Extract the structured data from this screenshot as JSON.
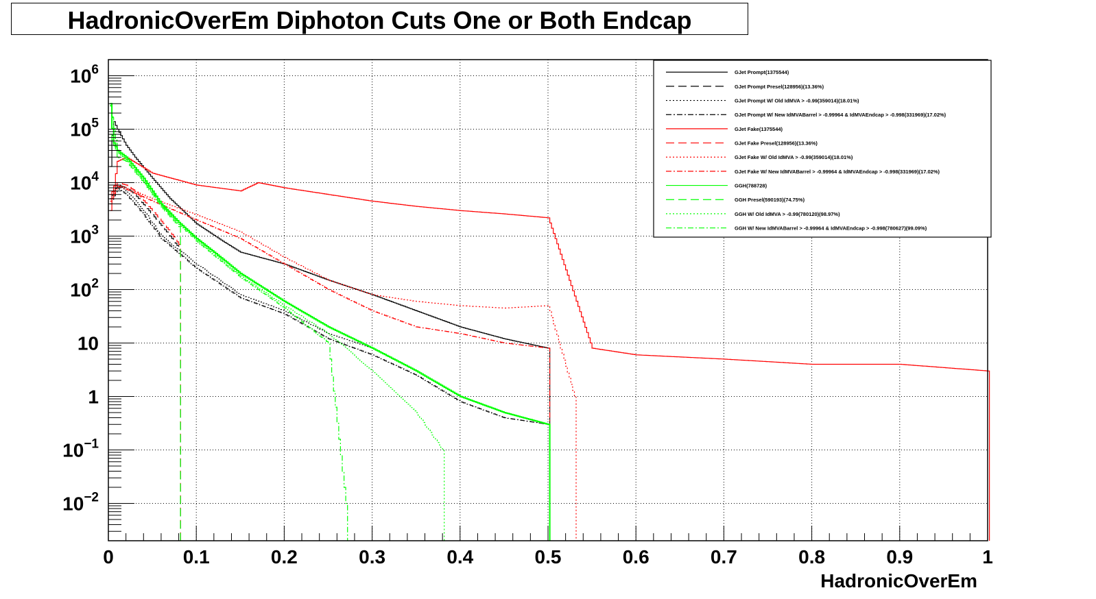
{
  "title": "HadronicOverEm Diphoton Cuts One or Both Endcap",
  "chart_data": {
    "type": "line",
    "style": "step histogram",
    "xlabel": "HadronicOverEm",
    "ylabel": "",
    "xlim": [
      0,
      1
    ],
    "ylim": [
      0.002,
      2000000
    ],
    "yscale": "log",
    "grid": true,
    "legend_placement": "top-right",
    "x_tick_labels": [
      "0",
      "0.1",
      "0.2",
      "0.3",
      "0.4",
      "0.5",
      "0.6",
      "0.7",
      "0.8",
      "0.9",
      "1"
    ],
    "y_tick_labels": [
      {
        "base": "10",
        "exp": "−2"
      },
      {
        "base": "10",
        "exp": "−1"
      },
      {
        "base": "1",
        "exp": ""
      },
      {
        "base": "10",
        "exp": ""
      },
      {
        "base": "10",
        "exp": "2"
      },
      {
        "base": "10",
        "exp": "3"
      },
      {
        "base": "10",
        "exp": "4"
      },
      {
        "base": "10",
        "exp": "5"
      },
      {
        "base": "10",
        "exp": "6"
      }
    ],
    "series": [
      {
        "name": "GJet Prompt(1375544)",
        "color": "#000000",
        "dash": "solid",
        "x": [
          0.002,
          0.005,
          0.01,
          0.02,
          0.03,
          0.05,
          0.07,
          0.1,
          0.13,
          0.15,
          0.2,
          0.25,
          0.3,
          0.35,
          0.4,
          0.45,
          0.5
        ],
        "y": [
          20000,
          150000,
          100000,
          50000,
          30000,
          12000,
          5000,
          1700,
          800,
          500,
          300,
          150,
          80,
          40,
          20,
          12,
          8
        ]
      },
      {
        "name": "GJet Prompt Presel(128956)(13.36%)",
        "color": "#000000",
        "dash": "long",
        "x": [
          0.002,
          0.01,
          0.02,
          0.03,
          0.05,
          0.07,
          0.08
        ],
        "y": [
          5000,
          9000,
          8000,
          6000,
          2500,
          1000,
          600
        ]
      },
      {
        "name": "GJet Prompt W/ Old IdMVA > -0.99(359014)(18.01%)",
        "color": "#000000",
        "dash": "dot",
        "x": [
          0.002,
          0.01,
          0.02,
          0.04,
          0.06,
          0.1,
          0.15,
          0.2,
          0.25,
          0.3,
          0.35,
          0.4,
          0.45,
          0.5
        ],
        "y": [
          5000,
          9000,
          7000,
          3000,
          1000,
          300,
          80,
          40,
          15,
          8,
          3,
          1,
          0.5,
          0.3
        ]
      },
      {
        "name": "GJet Prompt W/ New IdMVABarrel > -0.99964 & IdMVAEndcap > -0.998(331969)(17.02%)",
        "color": "#000000",
        "dash": "dashdot",
        "x": [
          0.002,
          0.01,
          0.02,
          0.04,
          0.06,
          0.1,
          0.15,
          0.2,
          0.25,
          0.3,
          0.35,
          0.4,
          0.45,
          0.5
        ],
        "y": [
          4000,
          8000,
          6000,
          2500,
          900,
          250,
          70,
          35,
          12,
          6,
          2.5,
          0.8,
          0.4,
          0.3
        ]
      },
      {
        "name": "GJet Fake(1375544)",
        "color": "#ff0000",
        "dash": "solid",
        "x": [
          0.002,
          0.01,
          0.02,
          0.05,
          0.1,
          0.15,
          0.17,
          0.2,
          0.25,
          0.3,
          0.35,
          0.4,
          0.45,
          0.5,
          0.55,
          0.6,
          0.7,
          0.8,
          0.9,
          1.0
        ],
        "y": [
          3000,
          25000,
          30000,
          15000,
          9000,
          7000,
          10000,
          8000,
          6000,
          4500,
          3600,
          3000,
          2600,
          2200,
          8,
          6,
          5,
          4,
          4,
          3
        ]
      },
      {
        "name": "GJet Fake Presel(128956)(13.36%)",
        "color": "#ff0000",
        "dash": "long",
        "x": [
          0.002,
          0.01,
          0.02,
          0.03,
          0.05,
          0.07,
          0.08
        ],
        "y": [
          6000,
          10000,
          9000,
          7000,
          3000,
          1200,
          700
        ]
      },
      {
        "name": "GJet Fake W/ Old IdMVA > -0.99(359014)(18.01%)",
        "color": "#ff0000",
        "dash": "dot",
        "x": [
          0.002,
          0.01,
          0.02,
          0.05,
          0.1,
          0.15,
          0.2,
          0.25,
          0.3,
          0.35,
          0.4,
          0.45,
          0.5,
          0.53
        ],
        "y": [
          5000,
          9000,
          8000,
          5000,
          2500,
          1200,
          400,
          150,
          80,
          60,
          50,
          45,
          50,
          1
        ]
      },
      {
        "name": "GJet Fake W/ New IdMVABarrel > -0.99964 & IdMVAEndcap > -0.998(331969)(17.02%)",
        "color": "#ff0000",
        "dash": "dashdot",
        "x": [
          0.002,
          0.01,
          0.02,
          0.05,
          0.1,
          0.15,
          0.2,
          0.25,
          0.3,
          0.35,
          0.4,
          0.45,
          0.5
        ],
        "y": [
          4500,
          8500,
          7500,
          4500,
          2000,
          900,
          300,
          100,
          40,
          20,
          15,
          10,
          8
        ]
      },
      {
        "name": "GGH(788728)",
        "color": "#00ff00",
        "dash": "solid",
        "x": [
          0.002,
          0.005,
          0.01,
          0.02,
          0.04,
          0.06,
          0.08,
          0.1,
          0.12,
          0.15,
          0.2,
          0.25,
          0.3,
          0.35,
          0.4,
          0.45,
          0.5
        ],
        "y": [
          300000,
          60000,
          40000,
          30000,
          12000,
          4000,
          1800,
          900,
          500,
          200,
          60,
          20,
          8,
          3,
          1,
          0.5,
          0.3
        ]
      },
      {
        "name": "GGH Presel(590193)(74.75%)",
        "color": "#00ff00",
        "dash": "long",
        "x": [
          0.002,
          0.01,
          0.02,
          0.04,
          0.06,
          0.08
        ],
        "y": [
          80000,
          30000,
          25000,
          10000,
          3500,
          1500
        ]
      },
      {
        "name": "GGH W/ Old IdMVA > -0.99(780120)(98.97%)",
        "color": "#00ff00",
        "dash": "dot",
        "x": [
          0.002,
          0.01,
          0.02,
          0.04,
          0.06,
          0.08,
          0.1,
          0.15,
          0.2,
          0.25,
          0.3,
          0.35,
          0.38
        ],
        "y": [
          280000,
          38000,
          28000,
          11000,
          3800,
          1700,
          850,
          180,
          50,
          15,
          3,
          0.5,
          0.1
        ]
      },
      {
        "name": "GGH W/ New IdMVABarrel > -0.99964 & IdMVAEndcap > -0.998(780627)(99.09%)",
        "color": "#00ff00",
        "dash": "dashdot",
        "x": [
          0.002,
          0.01,
          0.02,
          0.04,
          0.06,
          0.08,
          0.1,
          0.15,
          0.2,
          0.25,
          0.27
        ],
        "y": [
          270000,
          37000,
          27000,
          10500,
          3700,
          1650,
          800,
          170,
          45,
          10,
          0.01
        ]
      }
    ]
  }
}
